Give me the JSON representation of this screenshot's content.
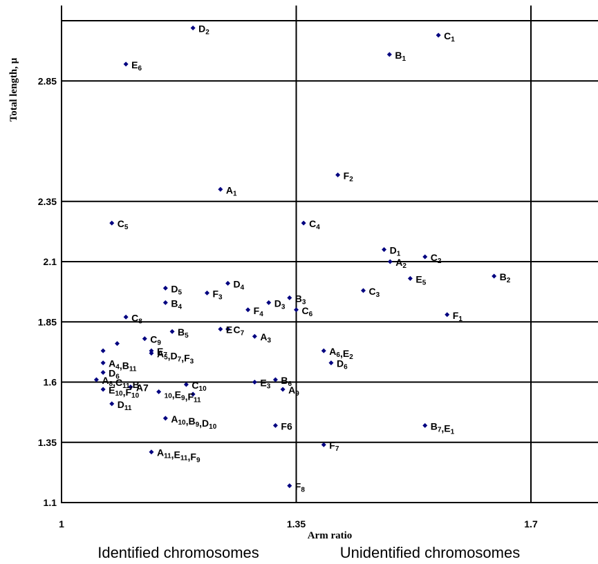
{
  "chart_data": {
    "type": "scatter",
    "xlabel": "Arm ratio",
    "ylabel": "Total length, μ",
    "xlim": [
      1.0,
      1.8
    ],
    "ylim": [
      1.1,
      3.1
    ],
    "x_ticks": [
      "1",
      "1.35",
      "1.7"
    ],
    "y_ticks": [
      "1.1",
      "1.35",
      "1.6",
      "1.85",
      "2.1",
      "2.35",
      "2.85"
    ],
    "grid": "horizontal and vertical",
    "marker_color": "#000080",
    "points": [
      {
        "x": 1.196,
        "y": 3.07,
        "label": [
          [
            "D",
            ""
          ],
          [
            "2",
            "sub"
          ]
        ]
      },
      {
        "x": 1.562,
        "y": 3.04,
        "label": [
          [
            "C",
            ""
          ],
          [
            "1",
            "sub"
          ]
        ]
      },
      {
        "x": 1.489,
        "y": 2.96,
        "label": [
          [
            "B",
            ""
          ],
          [
            "1",
            "sub"
          ]
        ]
      },
      {
        "x": 1.096,
        "y": 2.92,
        "label": [
          [
            "E",
            ""
          ],
          [
            "6",
            "sub"
          ]
        ]
      },
      {
        "x": 1.412,
        "y": 2.46,
        "label": [
          [
            "F",
            ""
          ],
          [
            "2",
            "sub"
          ]
        ]
      },
      {
        "x": 1.237,
        "y": 2.4,
        "label": [
          [
            "A",
            ""
          ],
          [
            "1",
            "sub"
          ]
        ]
      },
      {
        "x": 1.075,
        "y": 2.26,
        "label": [
          [
            "C",
            ""
          ],
          [
            "5",
            "sub"
          ]
        ]
      },
      {
        "x": 1.361,
        "y": 2.26,
        "label": [
          [
            "C",
            ""
          ],
          [
            "4",
            "sub"
          ]
        ]
      },
      {
        "x": 1.481,
        "y": 2.15,
        "label": [
          [
            "D",
            ""
          ],
          [
            "1",
            "sub"
          ]
        ]
      },
      {
        "x": 1.542,
        "y": 2.12,
        "label": [
          [
            "C",
            ""
          ],
          [
            "2",
            "sub"
          ]
        ]
      },
      {
        "x": 1.49,
        "y": 2.1,
        "label": [
          [
            "A",
            ""
          ],
          [
            "2",
            "sub"
          ]
        ]
      },
      {
        "x": 1.645,
        "y": 2.04,
        "label": [
          [
            "B",
            ""
          ],
          [
            "2",
            "sub"
          ]
        ]
      },
      {
        "x": 1.52,
        "y": 2.03,
        "label": [
          [
            "E",
            ""
          ],
          [
            "5",
            "sub"
          ]
        ]
      },
      {
        "x": 1.248,
        "y": 2.01,
        "label": [
          [
            "D",
            ""
          ],
          [
            "4",
            "sub"
          ]
        ]
      },
      {
        "x": 1.155,
        "y": 1.99,
        "label": [
          [
            "D",
            ""
          ],
          [
            "5",
            "sub"
          ]
        ]
      },
      {
        "x": 1.45,
        "y": 1.98,
        "label": [
          [
            "C",
            ""
          ],
          [
            "3",
            "sub"
          ]
        ]
      },
      {
        "x": 1.217,
        "y": 1.97,
        "label": [
          [
            "F",
            ""
          ],
          [
            "3",
            "sub"
          ]
        ]
      },
      {
        "x": 1.34,
        "y": 1.95,
        "label": [
          [
            "B",
            ""
          ],
          [
            "3",
            "sub"
          ]
        ]
      },
      {
        "x": 1.155,
        "y": 1.93,
        "label": [
          [
            "B",
            ""
          ],
          [
            "4",
            "sub"
          ]
        ]
      },
      {
        "x": 1.309,
        "y": 1.93,
        "label": [
          [
            "D",
            ""
          ],
          [
            "3",
            "sub"
          ]
        ]
      },
      {
        "x": 1.35,
        "y": 1.9,
        "label": [
          [
            "C",
            ""
          ],
          [
            "6",
            "sub"
          ]
        ]
      },
      {
        "x": 1.278,
        "y": 1.9,
        "label": [
          [
            "F",
            ""
          ],
          [
            "4",
            "sub"
          ]
        ]
      },
      {
        "x": 1.575,
        "y": 1.88,
        "label": [
          [
            "F",
            ""
          ],
          [
            "1",
            "sub"
          ]
        ]
      },
      {
        "x": 1.096,
        "y": 1.87,
        "label": [
          [
            "C",
            ""
          ],
          [
            "8",
            "sub"
          ]
        ]
      },
      {
        "x": 1.237,
        "y": 1.82,
        "label": [
          [
            "E",
            ""
          ]
        ]
      },
      {
        "x": 1.248,
        "y": 1.82,
        "label": [
          [
            "C",
            ""
          ],
          [
            "7",
            "sub"
          ]
        ]
      },
      {
        "x": 1.165,
        "y": 1.81,
        "label": [
          [
            "B",
            ""
          ],
          [
            "5",
            "sub"
          ]
        ]
      },
      {
        "x": 1.288,
        "y": 1.79,
        "label": [
          [
            "A",
            ""
          ],
          [
            "3",
            "sub"
          ]
        ]
      },
      {
        "x": 1.124,
        "y": 1.78,
        "label": [
          [
            "C",
            ""
          ],
          [
            "9",
            "sub"
          ]
        ]
      },
      {
        "x": 1.083,
        "y": 1.76,
        "label": []
      },
      {
        "x": 1.062,
        "y": 1.73,
        "label": []
      },
      {
        "x": 1.134,
        "y": 1.73,
        "label": [
          [
            "E",
            ""
          ],
          [
            "7",
            "sub"
          ]
        ]
      },
      {
        "x": 1.391,
        "y": 1.73,
        "label": [
          [
            "A",
            ""
          ],
          [
            "6",
            "sub"
          ],
          [
            ",E",
            ""
          ],
          [
            "2",
            "sub"
          ]
        ]
      },
      {
        "x": 1.134,
        "y": 1.72,
        "label": [
          [
            "A",
            ""
          ],
          [
            "5",
            "sub"
          ],
          [
            ",D",
            ""
          ],
          [
            "7",
            "sub"
          ],
          [
            ",F",
            ""
          ],
          [
            "3",
            "sub"
          ]
        ]
      },
      {
        "x": 1.062,
        "y": 1.68,
        "label": [
          [
            "A",
            ""
          ],
          [
            "4",
            "sub"
          ],
          [
            ",B",
            ""
          ],
          [
            "11",
            "sub"
          ]
        ]
      },
      {
        "x": 1.402,
        "y": 1.68,
        "label": [
          [
            "D",
            ""
          ],
          [
            "6",
            "sub"
          ]
        ]
      },
      {
        "x": 1.062,
        "y": 1.64,
        "label": [
          [
            "D",
            ""
          ],
          [
            "6",
            "sub"
          ]
        ]
      },
      {
        "x": 1.052,
        "y": 1.61,
        "label": [
          [
            "A",
            ""
          ],
          [
            "8",
            "sub"
          ],
          [
            ",C",
            ""
          ],
          [
            "11",
            "sub"
          ],
          [
            ",B",
            ""
          ]
        ]
      },
      {
        "x": 1.319,
        "y": 1.61,
        "label": [
          [
            "B",
            ""
          ],
          [
            "6",
            "sub"
          ]
        ]
      },
      {
        "x": 1.288,
        "y": 1.6,
        "label": [
          [
            "E",
            ""
          ],
          [
            "3",
            "sub"
          ]
        ]
      },
      {
        "x": 1.186,
        "y": 1.59,
        "label": [
          [
            "C",
            ""
          ],
          [
            "10",
            "sub"
          ]
        ]
      },
      {
        "x": 1.103,
        "y": 1.58,
        "label": [
          [
            "A7",
            ""
          ]
        ]
      },
      {
        "x": 1.062,
        "y": 1.57,
        "label": [
          [
            "E",
            ""
          ],
          [
            "10",
            "sub"
          ],
          [
            ",F",
            ""
          ],
          [
            "10",
            "sub"
          ]
        ]
      },
      {
        "x": 1.145,
        "y": 1.56,
        "label": [
          [
            "10",
            "sub"
          ],
          [
            ",E",
            ""
          ],
          [
            "9",
            "sub"
          ],
          [
            ",F",
            ""
          ],
          [
            "11",
            "sub"
          ]
        ]
      },
      {
        "x": 1.196,
        "y": 1.55,
        "label": []
      },
      {
        "x": 1.33,
        "y": 1.57,
        "label": [
          [
            "A",
            ""
          ],
          [
            "9",
            "sub"
          ]
        ]
      },
      {
        "x": 1.075,
        "y": 1.51,
        "label": [
          [
            "D",
            ""
          ],
          [
            "11",
            "sub"
          ]
        ]
      },
      {
        "x": 1.155,
        "y": 1.45,
        "label": [
          [
            "A",
            ""
          ],
          [
            "10",
            "sub"
          ],
          [
            ",B",
            ""
          ],
          [
            "9",
            "sub"
          ],
          [
            ",D",
            ""
          ],
          [
            "10",
            "sub"
          ]
        ]
      },
      {
        "x": 1.319,
        "y": 1.42,
        "label": [
          [
            "F6",
            ""
          ]
        ]
      },
      {
        "x": 1.542,
        "y": 1.42,
        "label": [
          [
            "B",
            ""
          ],
          [
            "7",
            "sub"
          ],
          [
            ",E",
            ""
          ],
          [
            "1",
            "sub"
          ]
        ]
      },
      {
        "x": 1.391,
        "y": 1.34,
        "label": [
          [
            "F",
            ""
          ],
          [
            "7",
            "sub"
          ]
        ]
      },
      {
        "x": 1.134,
        "y": 1.31,
        "label": [
          [
            "A",
            ""
          ],
          [
            "11",
            "sub"
          ],
          [
            ",E",
            ""
          ],
          [
            "11",
            "sub"
          ],
          [
            ",F",
            ""
          ],
          [
            "9",
            "sub"
          ]
        ]
      },
      {
        "x": 1.34,
        "y": 1.17,
        "label": [
          [
            "F",
            ""
          ],
          [
            "8",
            "sub"
          ]
        ]
      }
    ]
  },
  "captions": {
    "left": "Identified chromosomes",
    "right": "Unidentified chromosomes"
  }
}
